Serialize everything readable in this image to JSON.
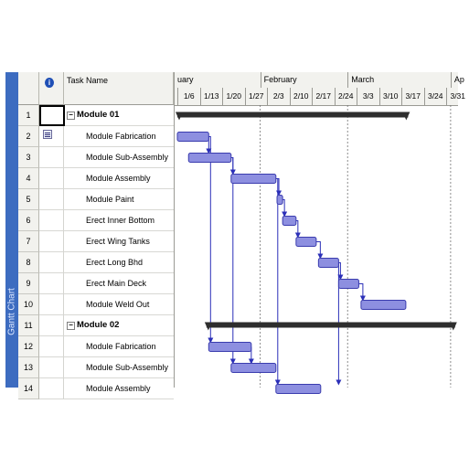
{
  "view_bar": {
    "label": "Gantt Chart"
  },
  "sheet": {
    "header": {
      "task_name": "Task Name",
      "info_icon": "i"
    },
    "rows": [
      {
        "id": "1",
        "name": "Module 01",
        "summary": true
      },
      {
        "id": "2",
        "name": "Module Fabrication",
        "summary": false
      },
      {
        "id": "3",
        "name": "Module Sub-Assembly",
        "summary": false
      },
      {
        "id": "4",
        "name": "Module Assembly",
        "summary": false
      },
      {
        "id": "5",
        "name": "Module Paint",
        "summary": false
      },
      {
        "id": "6",
        "name": "Erect Inner Bottom",
        "summary": false
      },
      {
        "id": "7",
        "name": "Erect Wing Tanks",
        "summary": false
      },
      {
        "id": "8",
        "name": "Erect Long Bhd",
        "summary": false
      },
      {
        "id": "9",
        "name": "Erect Main Deck",
        "summary": false
      },
      {
        "id": "10",
        "name": "Module Weld Out",
        "summary": false
      },
      {
        "id": "11",
        "name": "Module 02",
        "summary": true
      },
      {
        "id": "12",
        "name": "Module Fabrication",
        "summary": false
      },
      {
        "id": "13",
        "name": "Module Sub-Assembly",
        "summary": false
      },
      {
        "id": "14",
        "name": "Module Assembly",
        "summary": false
      }
    ]
  },
  "timescale": {
    "months": [
      "uary",
      "February",
      "March",
      "Ap"
    ],
    "weeks": [
      "1/6",
      "1/13",
      "1/20",
      "1/27",
      "2/3",
      "2/10",
      "2/17",
      "2/24",
      "3/3",
      "3/10",
      "3/17",
      "3/24",
      "3/31"
    ]
  },
  "chart_data": {
    "type": "gantt",
    "week_starts": [
      "1/6",
      "1/13",
      "1/20",
      "1/27",
      "2/3",
      "2/10",
      "2/17",
      "2/24",
      "3/3",
      "3/10",
      "3/17",
      "3/24",
      "3/31"
    ],
    "month_divisions_weeks": [
      3.7,
      7.6,
      12.2
    ],
    "tasks": [
      {
        "row": 1,
        "type": "summary",
        "start": 0.0,
        "end": 10.3
      },
      {
        "row": 2,
        "type": "task",
        "start": 0.0,
        "end": 1.4
      },
      {
        "row": 3,
        "type": "task",
        "start": 0.5,
        "end": 2.4
      },
      {
        "row": 4,
        "type": "task",
        "start": 2.4,
        "end": 4.4
      },
      {
        "row": 5,
        "type": "task",
        "start": 4.45,
        "end": 4.7
      },
      {
        "row": 6,
        "type": "task",
        "start": 4.7,
        "end": 5.3
      },
      {
        "row": 7,
        "type": "task",
        "start": 5.3,
        "end": 6.2
      },
      {
        "row": 8,
        "type": "task",
        "start": 6.3,
        "end": 7.2
      },
      {
        "row": 9,
        "type": "task",
        "start": 7.2,
        "end": 8.1
      },
      {
        "row": 10,
        "type": "task",
        "start": 8.2,
        "end": 10.2
      },
      {
        "row": 11,
        "type": "summary",
        "start": 1.3,
        "end": 12.4
      },
      {
        "row": 12,
        "type": "task",
        "start": 1.4,
        "end": 3.3
      },
      {
        "row": 13,
        "type": "task",
        "start": 2.4,
        "end": 4.4
      },
      {
        "row": 14,
        "type": "task",
        "start": 4.4,
        "end": 6.4
      }
    ],
    "links": [
      {
        "from": 2,
        "to": 3
      },
      {
        "from": 3,
        "to": 4
      },
      {
        "from": 4,
        "to": 5
      },
      {
        "from": 5,
        "to": 6
      },
      {
        "from": 6,
        "to": 7
      },
      {
        "from": 7,
        "to": 8
      },
      {
        "from": 8,
        "to": 9
      },
      {
        "from": 9,
        "to": 10
      },
      {
        "from": 2,
        "to": 12
      },
      {
        "from": 12,
        "to": 13
      },
      {
        "from": 3,
        "to": 13
      },
      {
        "from": 4,
        "to": 14
      },
      {
        "from": 8,
        "to": 14
      }
    ],
    "colors": {
      "bar": "#8d8fe0",
      "bar_dark": "#3a3cae",
      "summary": "#2e2e2e",
      "link": "#2b2fb8"
    }
  }
}
